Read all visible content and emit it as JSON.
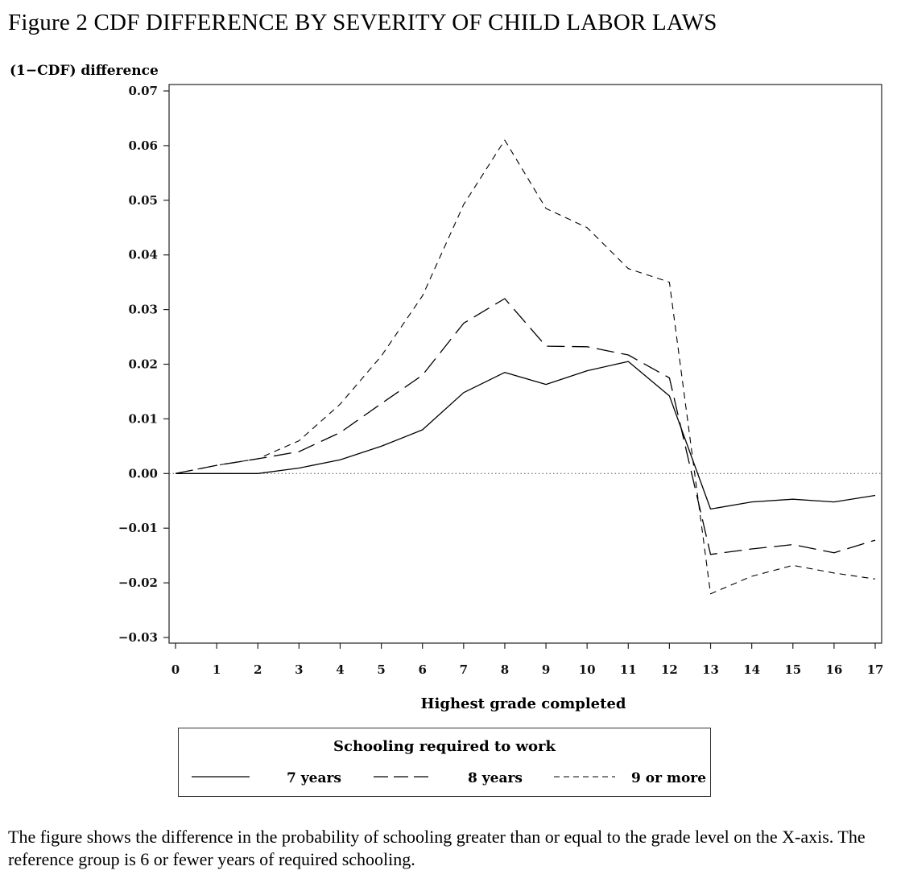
{
  "figure": {
    "title": "Figure 2 CDF DIFFERENCE BY SEVERITY OF CHILD LABOR LAWS",
    "caption": "The figure shows the difference in the probability of schooling greater than or equal to the grade level on the X-axis. The reference group is 6 or fewer years of required schooling."
  },
  "legend": {
    "title": "Schooling required to work",
    "placement": "below-chart"
  },
  "chart_data": {
    "type": "line",
    "xlabel": "Highest grade completed",
    "ylabel": "(1−CDF) difference",
    "x": [
      0,
      1,
      2,
      3,
      4,
      5,
      6,
      7,
      8,
      9,
      10,
      11,
      12,
      13,
      14,
      15,
      16,
      17
    ],
    "xlim": [
      0,
      17
    ],
    "ylim": [
      -0.03,
      0.07
    ],
    "xticks": [
      "0",
      "1",
      "2",
      "3",
      "4",
      "5",
      "6",
      "7",
      "8",
      "9",
      "10",
      "11",
      "12",
      "13",
      "14",
      "15",
      "16",
      "17"
    ],
    "yticks": [
      "0.07",
      "0.06",
      "0.05",
      "0.04",
      "0.03",
      "0.02",
      "0.01",
      "0.00",
      "−0.01",
      "−0.02",
      "−0.03"
    ],
    "ytick_values": [
      0.07,
      0.06,
      0.05,
      0.04,
      0.03,
      0.02,
      0.01,
      0.0,
      -0.01,
      -0.02,
      -0.03
    ],
    "zero_line": true,
    "grid": false,
    "series": [
      {
        "name": "7 years",
        "style": "solid",
        "color": "#000000",
        "values": [
          0.0,
          0.0,
          0.0,
          0.001,
          0.0025,
          0.005,
          0.008,
          0.0148,
          0.0185,
          0.0163,
          0.0188,
          0.0205,
          0.0142,
          -0.0065,
          -0.0052,
          -0.0047,
          -0.0052,
          -0.004
        ]
      },
      {
        "name": "8 years",
        "style": "long-dash",
        "color": "#000000",
        "values": [
          0.0,
          0.0015,
          0.0027,
          0.004,
          0.0075,
          0.0128,
          0.018,
          0.0275,
          0.032,
          0.0233,
          0.0232,
          0.0217,
          0.0175,
          -0.0148,
          -0.0138,
          -0.013,
          -0.0145,
          -0.0122
        ]
      },
      {
        "name": "9 or more",
        "style": "short-dash",
        "color": "#000000",
        "values": [
          0.0,
          0.0015,
          0.0027,
          0.006,
          0.0127,
          0.0215,
          0.0325,
          0.0492,
          0.061,
          0.0485,
          0.045,
          0.0375,
          0.035,
          -0.022,
          -0.0188,
          -0.0168,
          -0.0182,
          -0.0193
        ]
      }
    ]
  }
}
